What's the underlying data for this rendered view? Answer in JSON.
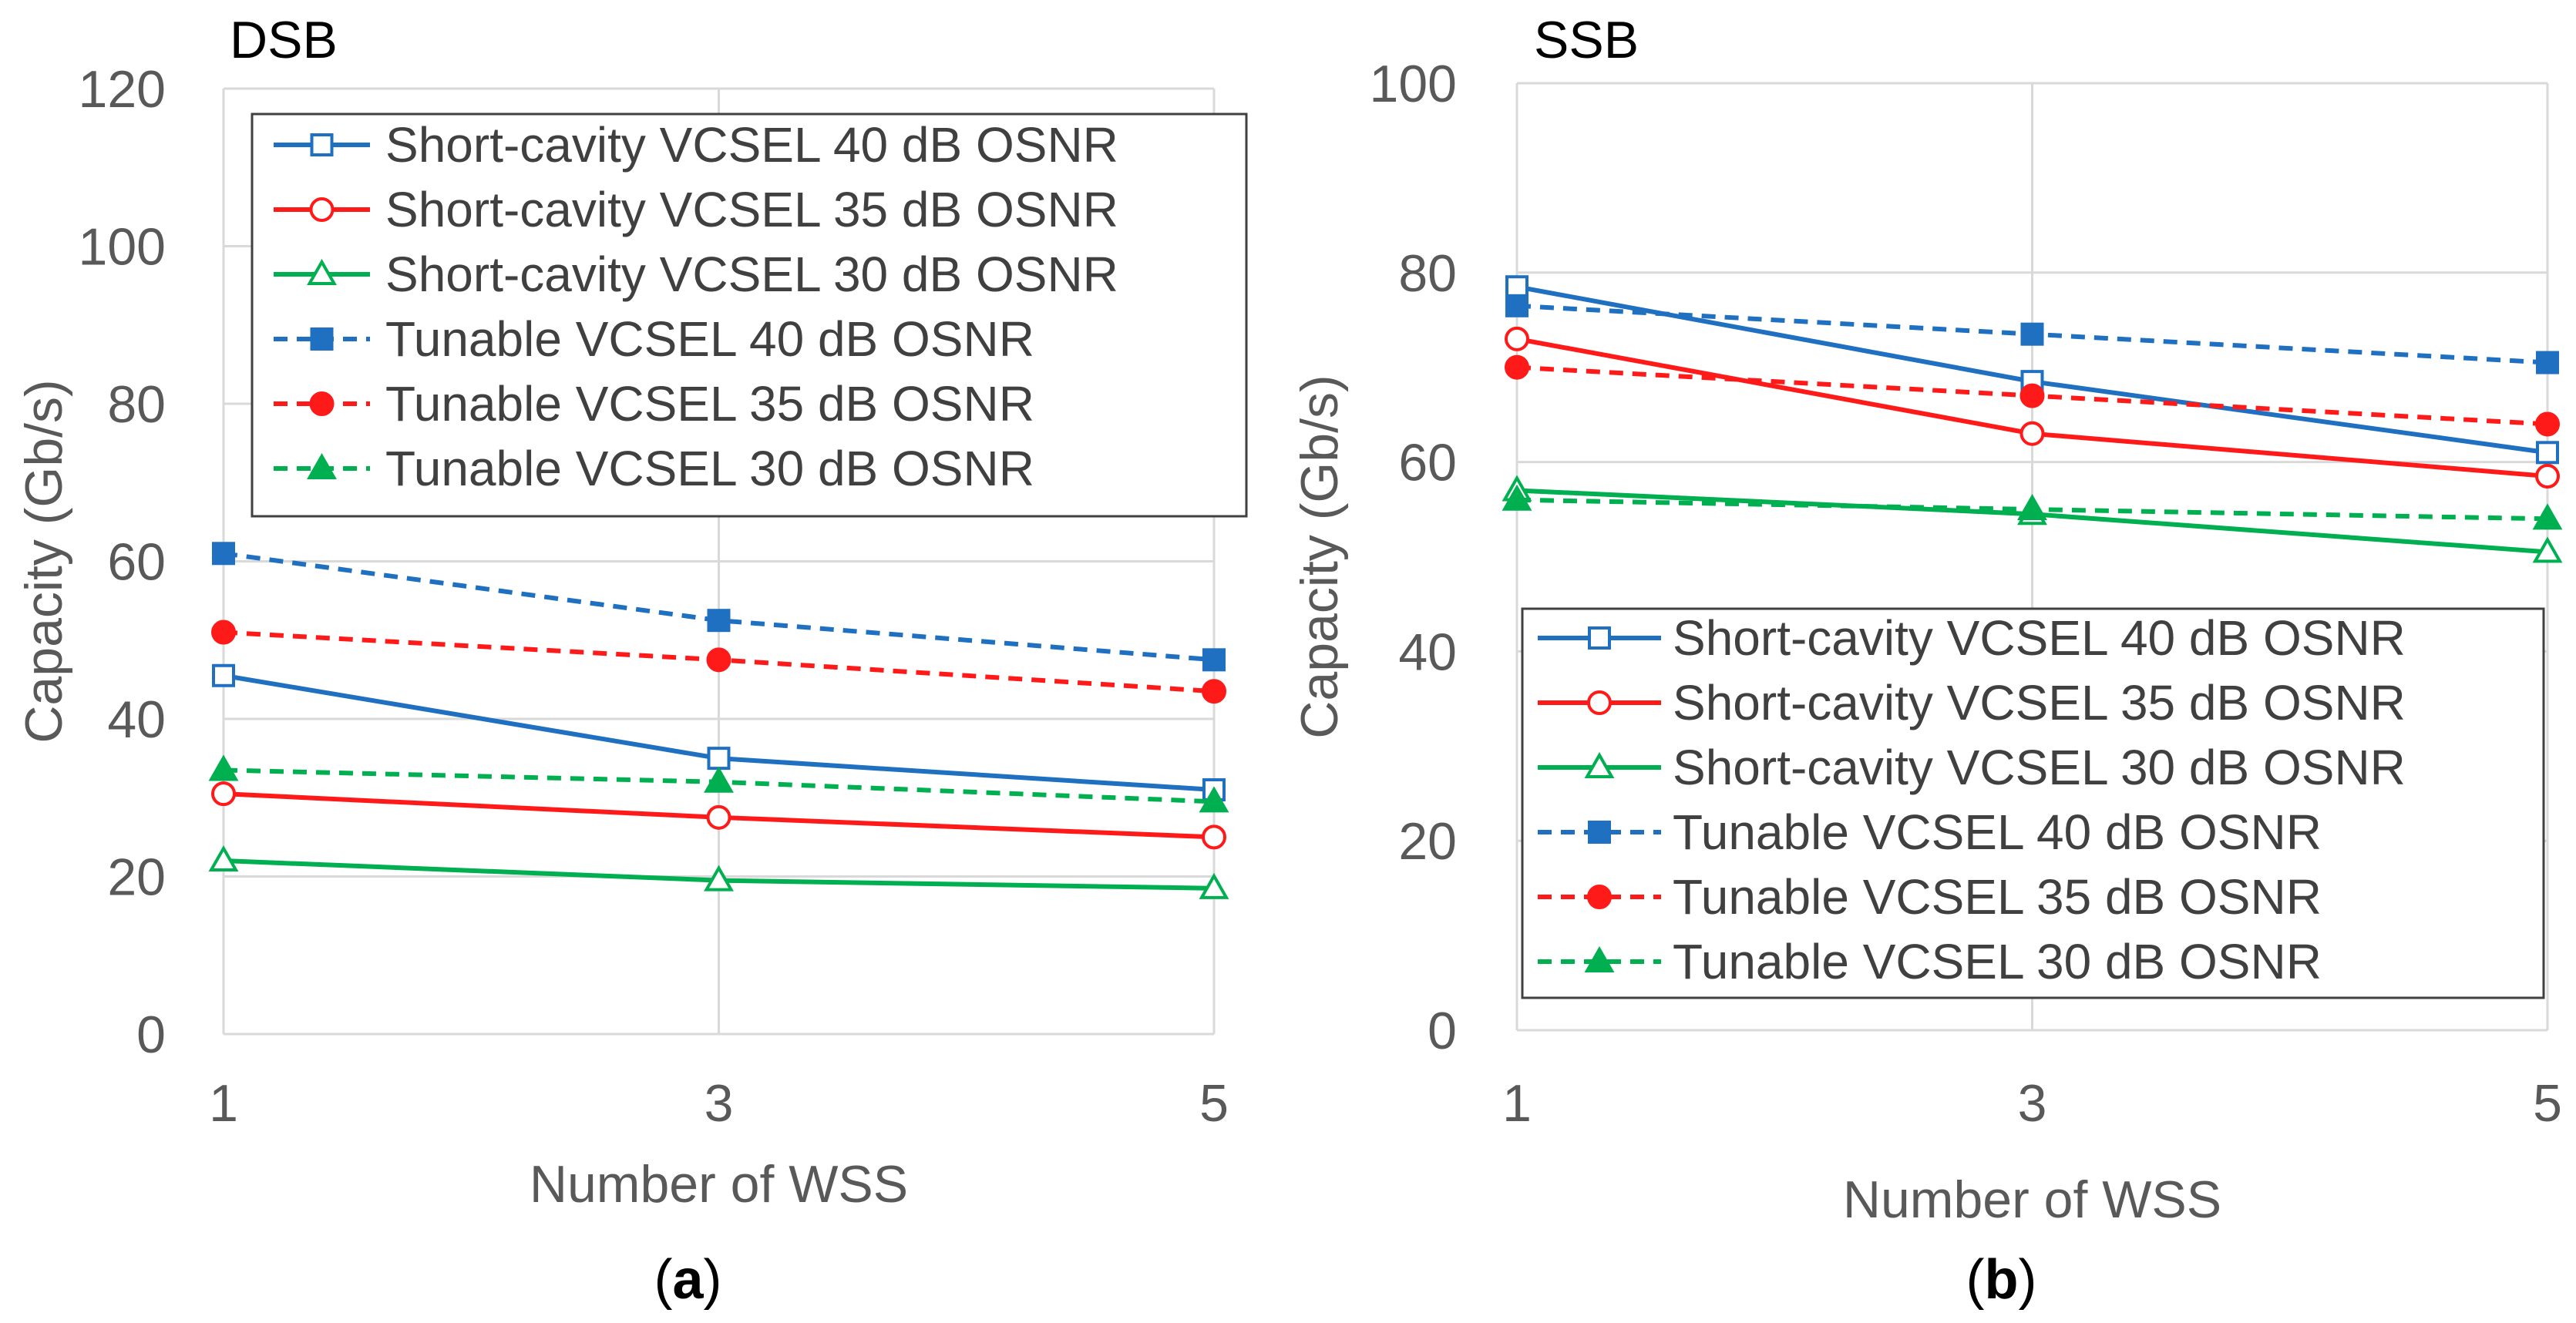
{
  "chart_data": [
    {
      "type": "line",
      "title": "DSB",
      "caption": {
        "open": "(",
        "letter": "a",
        "close": ")"
      },
      "xlabel": "Number of WSS",
      "ylabel": "Capacity (Gb/s)",
      "categories": [
        1,
        3,
        5
      ],
      "ylim": [
        0,
        120
      ],
      "yticks": [
        0,
        20,
        40,
        60,
        80,
        100,
        120
      ],
      "grid": true,
      "legend_position": "top",
      "series": [
        {
          "name": "Short-cavity VCSEL 40 dB OSNR",
          "color": "#1f70c1",
          "dash": "solid",
          "marker": "square-open",
          "values": [
            45.5,
            35,
            31
          ]
        },
        {
          "name": "Short-cavity VCSEL 35 dB OSNR",
          "color": "#ff1a1a",
          "dash": "solid",
          "marker": "circle-open",
          "values": [
            30.5,
            27.5,
            25
          ]
        },
        {
          "name": "Short-cavity VCSEL 30 dB OSNR",
          "color": "#00b050",
          "dash": "solid",
          "marker": "triangle-open",
          "values": [
            22,
            19.5,
            18.5
          ]
        },
        {
          "name": "Tunable VCSEL 40 dB OSNR",
          "color": "#1f70c1",
          "dash": "dashed",
          "marker": "square-filled",
          "values": [
            61,
            52.5,
            47.5
          ]
        },
        {
          "name": "Tunable VCSEL 35 dB OSNR",
          "color": "#ff1a1a",
          "dash": "dashed",
          "marker": "circle-filled",
          "values": [
            51,
            47.5,
            43.5
          ]
        },
        {
          "name": "Tunable VCSEL 30 dB OSNR",
          "color": "#00b050",
          "dash": "dashed",
          "marker": "triangle-filled",
          "values": [
            33.5,
            32,
            29.5
          ]
        }
      ]
    },
    {
      "type": "line",
      "title": "SSB",
      "caption": {
        "open": "(",
        "letter": "b",
        "close": ")"
      },
      "xlabel": "Number of WSS",
      "ylabel": "Capacity (Gb/s)",
      "categories": [
        1,
        3,
        5
      ],
      "ylim": [
        0,
        100
      ],
      "yticks": [
        0,
        20,
        40,
        60,
        80,
        100
      ],
      "grid": true,
      "legend_position": "bottom",
      "series": [
        {
          "name": "Short-cavity VCSEL 40 dB OSNR",
          "color": "#1f70c1",
          "dash": "solid",
          "marker": "square-open",
          "values": [
            78.5,
            68.5,
            61
          ]
        },
        {
          "name": "Short-cavity VCSEL 35 dB OSNR",
          "color": "#ff1a1a",
          "dash": "solid",
          "marker": "circle-open",
          "values": [
            73,
            63,
            58.5
          ]
        },
        {
          "name": "Short-cavity VCSEL 30 dB OSNR",
          "color": "#00b050",
          "dash": "solid",
          "marker": "triangle-open",
          "values": [
            57,
            54.5,
            50.5
          ]
        },
        {
          "name": "Tunable VCSEL 40 dB OSNR",
          "color": "#1f70c1",
          "dash": "dashed",
          "marker": "square-filled",
          "values": [
            76.5,
            73.5,
            70.5
          ]
        },
        {
          "name": "Tunable VCSEL 35 dB OSNR",
          "color": "#ff1a1a",
          "dash": "dashed",
          "marker": "circle-filled",
          "values": [
            70,
            67,
            64
          ]
        },
        {
          "name": "Tunable VCSEL 30 dB OSNR",
          "color": "#00b050",
          "dash": "dashed",
          "marker": "triangle-filled",
          "values": [
            56,
            55,
            54
          ]
        }
      ]
    }
  ]
}
